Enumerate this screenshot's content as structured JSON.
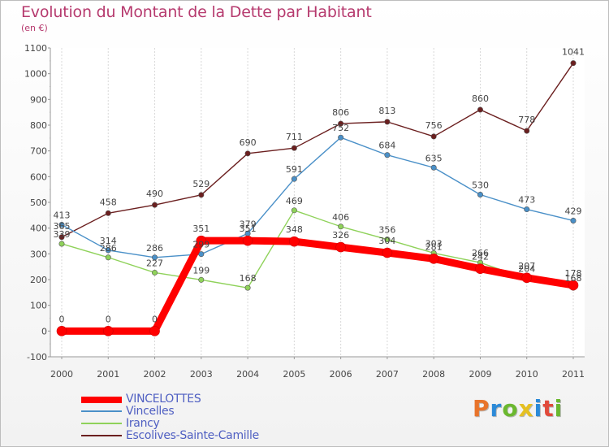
{
  "title": "Evolution du Montant de la Dette par Habitant",
  "unit": "(en €)",
  "logo_text": "Proxiti",
  "logo_colors": [
    "#e8742b",
    "#2b8ad8",
    "#6bb82f",
    "#e5c021",
    "#2b8ad8",
    "#e14a3a",
    "#6bb82f"
  ],
  "chart_data": {
    "type": "line",
    "x": [
      "2000",
      "2001",
      "2002",
      "2003",
      "2004",
      "2005",
      "2006",
      "2007",
      "2008",
      "2009",
      "2010",
      "2011"
    ],
    "ylim": [
      -100,
      1100
    ],
    "y_ticks": [
      -100,
      0,
      100,
      200,
      300,
      400,
      500,
      600,
      700,
      800,
      900,
      1000,
      1100
    ],
    "grid": "vertical",
    "legend_position": "bottom-left",
    "series": [
      {
        "name": "VINCELOTTES",
        "color": "#ff0000",
        "values": [
          0,
          0,
          0,
          351,
          351,
          348,
          326,
          304,
          281,
          242,
          207,
          178
        ],
        "labels": [
          "0",
          "0",
          "0",
          "351",
          "351",
          "348",
          "326",
          "304",
          "281",
          "242",
          "207",
          "178"
        ]
      },
      {
        "name": "Vincelles",
        "color": "#4a90c8",
        "values": [
          413,
          314,
          286,
          299,
          379,
          591,
          752,
          684,
          635,
          530,
          473,
          429
        ],
        "labels": [
          "413",
          "314",
          "286",
          "299",
          "379",
          "591",
          "752",
          "684",
          "635",
          "530",
          "473",
          "429"
        ]
      },
      {
        "name": "Irancy",
        "color": "#8fd25a",
        "values": [
          339,
          286,
          227,
          199,
          168,
          469,
          406,
          356,
          303,
          266,
          204,
          168
        ],
        "labels": [
          "339",
          "286",
          "227",
          "199",
          "168",
          "469",
          "406",
          "356",
          "303",
          "266",
          "204",
          "168"
        ]
      },
      {
        "name": "Escolives-Sainte-Camille",
        "color": "#6b1f1f",
        "values": [
          365,
          458,
          490,
          529,
          690,
          711,
          806,
          813,
          756,
          860,
          778,
          1041
        ],
        "labels": [
          "365",
          "458",
          "490",
          "529",
          "690",
          "711",
          "806",
          "813",
          "756",
          "860",
          "778",
          "1041"
        ]
      }
    ]
  }
}
